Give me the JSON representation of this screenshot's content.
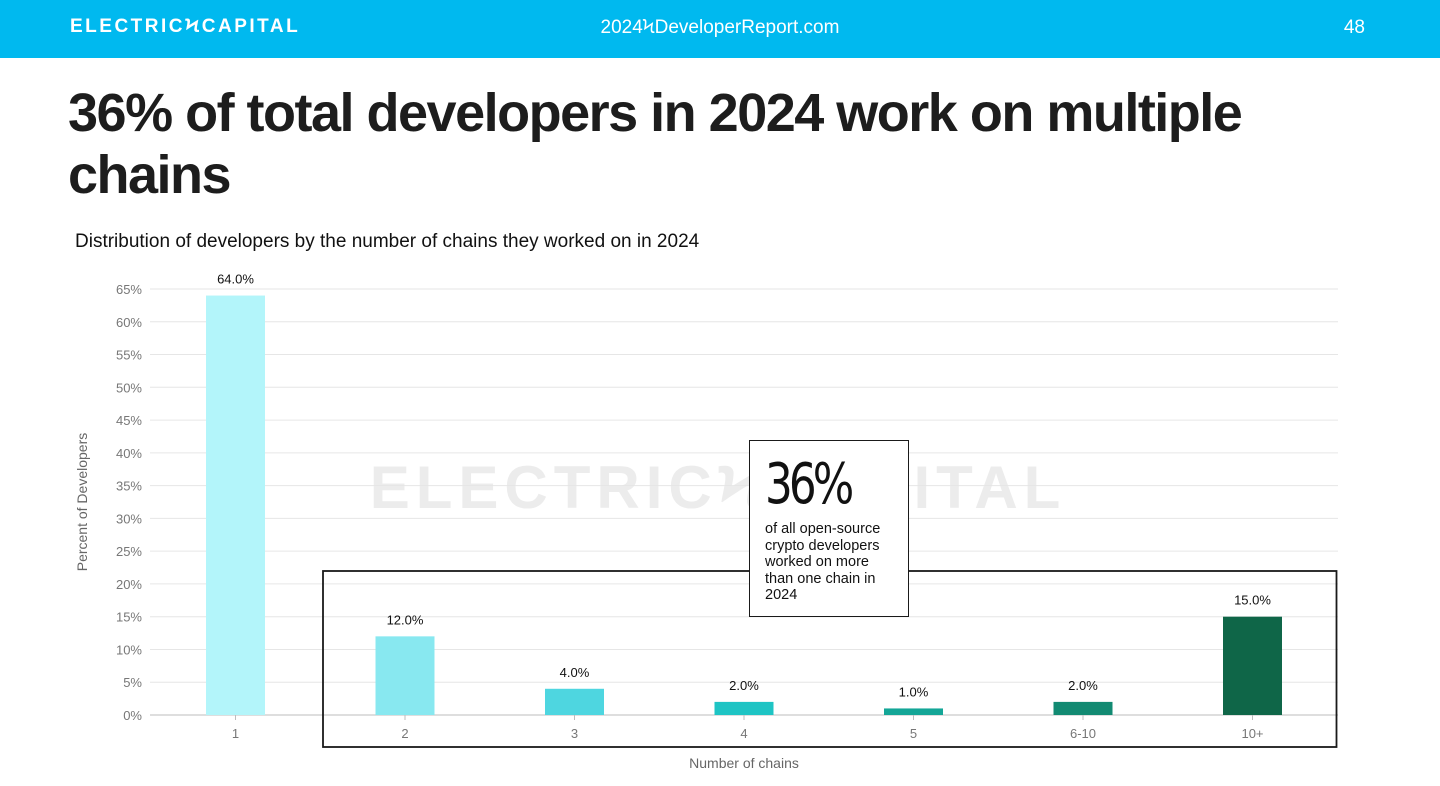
{
  "header": {
    "brand": "ELECTRICϞCAPITAL",
    "site": "2024ϞDeveloperReport.com",
    "page_number": "48"
  },
  "headline": "36% of total developers in 2024 work on multiple chains",
  "callout": {
    "value": "36%",
    "text": "of all open-source crypto developers worked on more than one chain in 2024"
  },
  "watermark": "ELECTRICϞCAPITAL",
  "colors": {
    "header_bg": "#00b9ef",
    "bars": [
      "#b3f5fa",
      "#88e8f0",
      "#4ed6e0",
      "#1ec4c4",
      "#14a697",
      "#128a72",
      "#0f6648"
    ]
  },
  "chart_data": {
    "type": "bar",
    "title": "Distribution of developers by the number of chains they worked on in 2024",
    "xlabel": "Number of chains",
    "ylabel": "Percent of Developers",
    "categories": [
      "1",
      "2",
      "3",
      "4",
      "5",
      "6-10",
      "10+"
    ],
    "values": [
      64.0,
      12.0,
      4.0,
      2.0,
      1.0,
      2.0,
      15.0
    ],
    "value_labels": [
      "64.0%",
      "12.0%",
      "4.0%",
      "2.0%",
      "1.0%",
      "2.0%",
      "15.0%"
    ],
    "ylim": [
      0,
      65
    ],
    "yticks": [
      "0%",
      "5%",
      "10%",
      "15%",
      "20%",
      "25%",
      "30%",
      "35%",
      "40%",
      "45%",
      "50%",
      "55%",
      "60%",
      "65%"
    ],
    "grid": true,
    "highlight_categories": [
      "2",
      "3",
      "4",
      "5",
      "6-10",
      "10+"
    ]
  }
}
